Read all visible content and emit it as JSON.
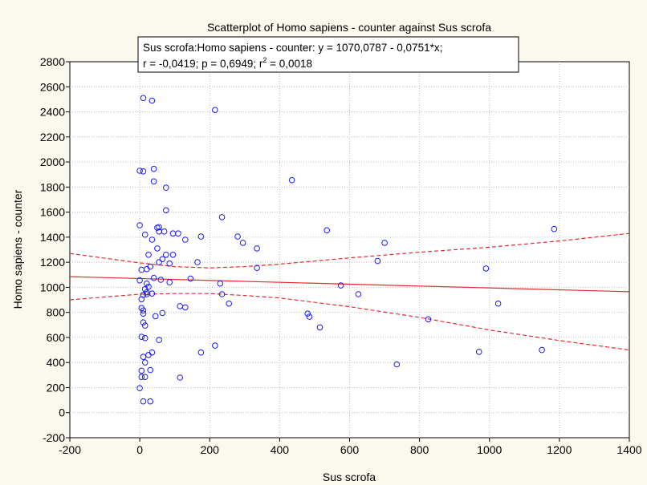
{
  "chart_data": {
    "type": "scatter",
    "title": "Scatterplot of Homo sapiens - counter against Sus scrofa",
    "xlabel": "Sus scrofa",
    "ylabel": "Homo sapiens - counter",
    "xlim": [
      -200,
      1400
    ],
    "ylim": [
      -200,
      2800
    ],
    "x_ticks": [
      -200,
      0,
      200,
      400,
      600,
      800,
      1000,
      1200,
      1400
    ],
    "y_ticks": [
      -200,
      0,
      200,
      400,
      600,
      800,
      1000,
      1200,
      1400,
      1600,
      1800,
      2000,
      2200,
      2400,
      2600,
      2800
    ],
    "grid": true,
    "annotation": {
      "line1": "Sus scrofa:Homo sapiens - counter:   y = 1070,0787 - 0,0751*x;",
      "line2_pre": "r = -0,0419; p = 0,6949; r",
      "line2_sup": "2",
      "line2_post": " = 0,0018"
    },
    "regression": {
      "intercept": 1070.0787,
      "slope": -0.0751
    },
    "confidence_upper": [
      [
        -200,
        1270
      ],
      [
        0,
        1195
      ],
      [
        100,
        1165
      ],
      [
        200,
        1155
      ],
      [
        300,
        1165
      ],
      [
        400,
        1185
      ],
      [
        600,
        1235
      ],
      [
        800,
        1280
      ],
      [
        1000,
        1320
      ],
      [
        1200,
        1370
      ],
      [
        1400,
        1430
      ]
    ],
    "confidence_lower": [
      [
        -200,
        900
      ],
      [
        0,
        945
      ],
      [
        100,
        950
      ],
      [
        200,
        950
      ],
      [
        300,
        935
      ],
      [
        400,
        915
      ],
      [
        600,
        845
      ],
      [
        800,
        760
      ],
      [
        1000,
        660
      ],
      [
        1200,
        575
      ],
      [
        1400,
        500
      ]
    ],
    "colors": {
      "points": "#1a1aff",
      "lines": "#e8292c",
      "grid": "#bbbbbb",
      "plot_bg": "#ffffff",
      "page_bg": "#fbf8ee"
    },
    "points": [
      [
        10,
        2510
      ],
      [
        35,
        2490
      ],
      [
        215,
        2415
      ],
      [
        10,
        1925
      ],
      [
        0,
        1930
      ],
      [
        40,
        1945
      ],
      [
        435,
        1855
      ],
      [
        40,
        1845
      ],
      [
        75,
        1795
      ],
      [
        235,
        1560
      ],
      [
        75,
        1615
      ],
      [
        0,
        1495
      ],
      [
        50,
        1475
      ],
      [
        55,
        1480
      ],
      [
        535,
        1455
      ],
      [
        1185,
        1465
      ],
      [
        55,
        1445
      ],
      [
        70,
        1445
      ],
      [
        95,
        1430
      ],
      [
        110,
        1430
      ],
      [
        15,
        1420
      ],
      [
        175,
        1405
      ],
      [
        280,
        1405
      ],
      [
        35,
        1380
      ],
      [
        130,
        1380
      ],
      [
        295,
        1355
      ],
      [
        700,
        1355
      ],
      [
        50,
        1310
      ],
      [
        335,
        1310
      ],
      [
        25,
        1260
      ],
      [
        75,
        1260
      ],
      [
        95,
        1260
      ],
      [
        65,
        1225
      ],
      [
        55,
        1200
      ],
      [
        165,
        1200
      ],
      [
        85,
        1190
      ],
      [
        680,
        1210
      ],
      [
        30,
        1165
      ],
      [
        335,
        1155
      ],
      [
        5,
        1140
      ],
      [
        20,
        1145
      ],
      [
        990,
        1150
      ],
      [
        145,
        1070
      ],
      [
        0,
        1055
      ],
      [
        40,
        1075
      ],
      [
        60,
        1060
      ],
      [
        20,
        1030
      ],
      [
        25,
        1005
      ],
      [
        85,
        1040
      ],
      [
        230,
        1030
      ],
      [
        575,
        1015
      ],
      [
        15,
        985
      ],
      [
        20,
        960
      ],
      [
        10,
        940
      ],
      [
        20,
        945
      ],
      [
        35,
        950
      ],
      [
        625,
        945
      ],
      [
        235,
        945
      ],
      [
        5,
        905
      ],
      [
        5,
        835
      ],
      [
        255,
        870
      ],
      [
        1025,
        870
      ],
      [
        10,
        815
      ],
      [
        115,
        850
      ],
      [
        130,
        840
      ],
      [
        10,
        790
      ],
      [
        65,
        795
      ],
      [
        45,
        770
      ],
      [
        480,
        790
      ],
      [
        485,
        765
      ],
      [
        825,
        745
      ],
      [
        10,
        720
      ],
      [
        15,
        695
      ],
      [
        515,
        680
      ],
      [
        5,
        605
      ],
      [
        15,
        595
      ],
      [
        55,
        580
      ],
      [
        215,
        535
      ],
      [
        35,
        480
      ],
      [
        175,
        480
      ],
      [
        970,
        485
      ],
      [
        1150,
        500
      ],
      [
        10,
        445
      ],
      [
        25,
        460
      ],
      [
        15,
        400
      ],
      [
        735,
        385
      ],
      [
        5,
        335
      ],
      [
        30,
        340
      ],
      [
        5,
        285
      ],
      [
        15,
        285
      ],
      [
        115,
        280
      ],
      [
        0,
        195
      ],
      [
        10,
        90
      ],
      [
        30,
        90
      ]
    ]
  }
}
